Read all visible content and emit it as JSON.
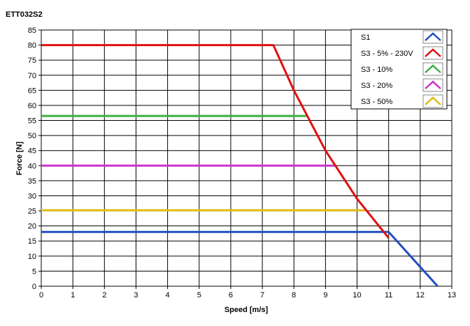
{
  "chart_data": {
    "type": "line",
    "title": "ETT032S2",
    "xlabel": "Speed [m/s]",
    "ylabel": "Force [N]",
    "xlim": [
      0,
      13
    ],
    "ylim": [
      0,
      85
    ],
    "x_ticks": [
      "0",
      "1",
      "2",
      "3",
      "4",
      "5",
      "6",
      "7",
      "8",
      "9",
      "10",
      "11",
      "12",
      "13"
    ],
    "y_ticks": [
      "0",
      "5",
      "10",
      "15",
      "20",
      "25",
      "30",
      "35",
      "40",
      "45",
      "50",
      "55",
      "60",
      "65",
      "70",
      "75",
      "80",
      "85"
    ],
    "grid": true,
    "legend_position": "top-right",
    "series": [
      {
        "name": "S1",
        "color": "#1f4fbf",
        "x": [
          0,
          11.0,
          12.55
        ],
        "y": [
          18,
          18,
          0
        ]
      },
      {
        "name": "S3 - 5%  - 230V",
        "color": "#e01010",
        "x": [
          0,
          7.35,
          8.0,
          9.0,
          10.0,
          11.0
        ],
        "y": [
          80,
          80,
          65,
          45,
          29,
          16
        ]
      },
      {
        "name": "S3 - 10%",
        "color": "#3cb043",
        "x": [
          0,
          8.4
        ],
        "y": [
          56.5,
          56.5
        ]
      },
      {
        "name": "S3 - 20%",
        "color": "#cc33cc",
        "x": [
          0,
          9.3
        ],
        "y": [
          40,
          40
        ]
      },
      {
        "name": "S3 - 50%",
        "color": "#ddbb11",
        "x": [
          0,
          10.3
        ],
        "y": [
          25.2,
          25.2
        ]
      }
    ]
  }
}
